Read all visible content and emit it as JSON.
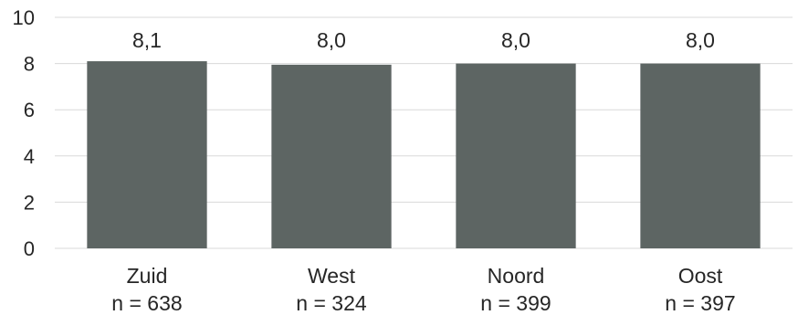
{
  "chart_data": {
    "type": "bar",
    "categories": [
      "Zuid",
      "West",
      "Noord",
      "Oost"
    ],
    "sample_sizes": [
      "n = 638",
      "n = 324",
      "n = 399",
      "n = 397"
    ],
    "values": [
      8.1,
      7.95,
      8.0,
      8.0
    ],
    "data_labels": [
      "8,1",
      "8,0",
      "8,0",
      "8,0"
    ],
    "y_ticks": [
      "0",
      "2",
      "4",
      "6",
      "8",
      "10"
    ],
    "ylim": [
      0,
      10
    ],
    "grid": true,
    "legend": "none",
    "bar_color": "#5d6563",
    "grid_color": "#d9d9d9"
  }
}
